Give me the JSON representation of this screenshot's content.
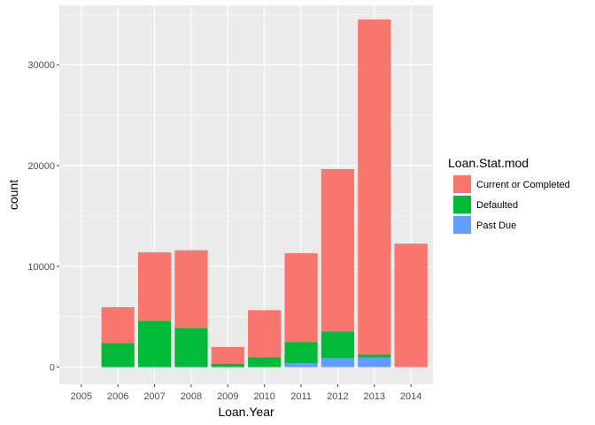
{
  "chart_data": {
    "type": "bar",
    "stacked": true,
    "categories": [
      "2005",
      "2006",
      "2007",
      "2008",
      "2009",
      "2010",
      "2011",
      "2012",
      "2013",
      "2014"
    ],
    "series": [
      {
        "name": "Past Due",
        "color": "#619CFF",
        "values": [
          0,
          0,
          0,
          0,
          0,
          0,
          400,
          900,
          950,
          0
        ]
      },
      {
        "name": "Defaulted",
        "color": "#00BA38",
        "values": [
          0,
          2400,
          4600,
          3900,
          350,
          1000,
          2100,
          2650,
          300,
          0
        ]
      },
      {
        "name": "Current or Completed",
        "color": "#F8766D",
        "values": [
          0,
          3550,
          6800,
          7700,
          1650,
          4650,
          8800,
          16100,
          33250,
          12250
        ]
      }
    ],
    "title": "",
    "xlabel": "Loan.Year",
    "ylabel": "count",
    "ylim": [
      -1700,
      35900
    ],
    "yticks": [
      0,
      10000,
      20000,
      30000
    ],
    "grid": true,
    "legend": {
      "title": "Loan.Stat.mod",
      "placement": "right",
      "entries": [
        "Current or Completed",
        "Defaulted",
        "Past Due"
      ]
    },
    "panel_background": "#EBEBEB",
    "grid_color": "#FFFFFF"
  }
}
